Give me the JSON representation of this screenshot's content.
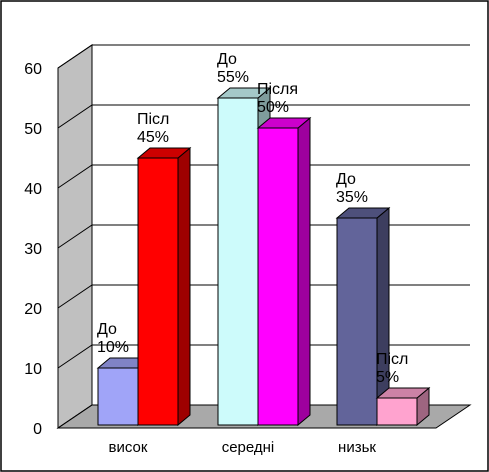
{
  "chart_data": {
    "type": "bar",
    "categories": [
      "висок",
      "середні",
      "низьк"
    ],
    "y_ticks": [
      "0",
      "10",
      "20",
      "30",
      "40",
      "50",
      "60"
    ],
    "ylim": [
      0,
      60
    ],
    "grid": true,
    "legend": "none",
    "bars": [
      {
        "category": "висок",
        "value": 10,
        "label": [
          "До",
          "10%"
        ],
        "color": "#a0a4f8"
      },
      {
        "category": "висок",
        "value": 45,
        "label": [
          "Післ",
          "45%"
        ],
        "color": "#ff0000"
      },
      {
        "category": "середні",
        "value": 55,
        "label": [
          "До",
          "55%"
        ],
        "color": "#cdfbfb"
      },
      {
        "category": "середні",
        "value": 50,
        "label": [
          "Після",
          "50%"
        ],
        "color": "#ff00ff"
      },
      {
        "category": "низьк",
        "value": 35,
        "label": [
          "До",
          "35%"
        ],
        "color": "#62649a"
      },
      {
        "category": "низьк",
        "value": 5,
        "label": [
          "Післ",
          "5%"
        ],
        "color": "#ffa3cf"
      }
    ],
    "wall_color": "#c0c0c0",
    "floor_color": "#a9a9a9"
  }
}
